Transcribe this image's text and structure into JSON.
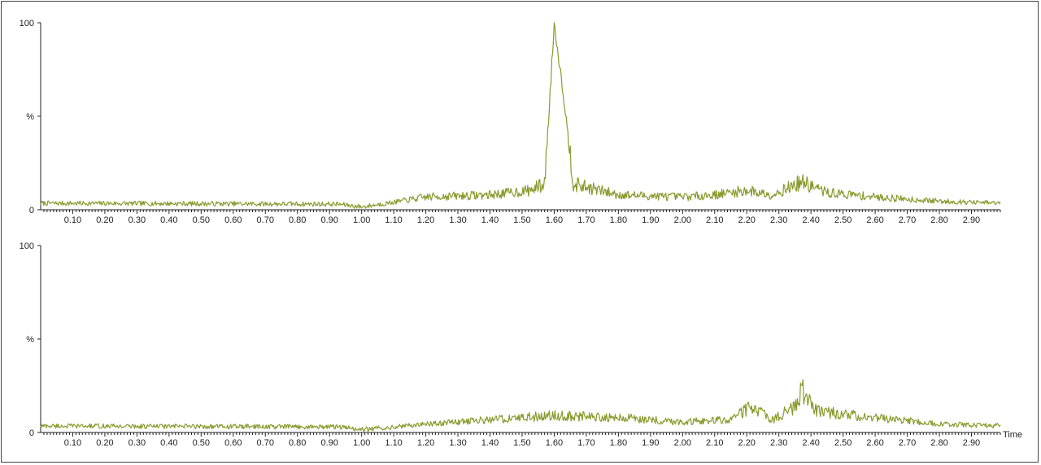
{
  "chart_data": [
    {
      "type": "line",
      "name": "top-trace",
      "ylabel": "%",
      "xlabel": "",
      "ylim": [
        0,
        100
      ],
      "xlim": [
        0.0,
        2.99
      ],
      "y_ticks": [
        "0",
        "%",
        "100"
      ],
      "x_ticks": [
        "0.10",
        "0.20",
        "0.30",
        "0.40",
        "0.50",
        "0.60",
        "0.70",
        "0.80",
        "0.90",
        "1.00",
        "1.10",
        "1.20",
        "1.30",
        "1.40",
        "1.50",
        "1.60",
        "1.70",
        "1.80",
        "1.90",
        "2.00",
        "2.10",
        "2.20",
        "2.30",
        "2.40",
        "2.50",
        "2.60",
        "2.70",
        "2.80",
        "2.90"
      ],
      "color": "#8a9a2e",
      "baseline_profile": {
        "x": [
          0.0,
          0.93,
          1.0,
          1.2,
          1.4,
          1.52,
          1.57,
          1.6,
          1.63,
          1.66,
          1.8,
          2.0,
          2.1,
          2.2,
          2.28,
          2.37,
          2.45,
          2.6,
          2.8,
          2.99
        ],
        "y": [
          3,
          2.5,
          1,
          6,
          7,
          9,
          12,
          100,
          60,
          12,
          7,
          6,
          7,
          9,
          7,
          13,
          8,
          6,
          4,
          3
        ]
      }
    },
    {
      "type": "line",
      "name": "bottom-trace",
      "ylabel": "%",
      "xlabel": "Time",
      "ylim": [
        0,
        100
      ],
      "xlim": [
        0.0,
        2.99
      ],
      "y_ticks": [
        "0",
        "%",
        "100"
      ],
      "x_ticks": [
        "0.10",
        "0.20",
        "0.30",
        "0.40",
        "0.50",
        "0.60",
        "0.70",
        "0.80",
        "0.90",
        "1.00",
        "1.10",
        "1.20",
        "1.30",
        "1.40",
        "1.50",
        "1.60",
        "1.70",
        "1.80",
        "1.90",
        "2.00",
        "2.10",
        "2.20",
        "2.30",
        "2.40",
        "2.50",
        "2.60",
        "2.70",
        "2.80",
        "2.90"
      ],
      "color": "#8a9a2e",
      "baseline_profile": {
        "x": [
          0.0,
          0.93,
          1.0,
          1.2,
          1.4,
          1.6,
          1.8,
          2.0,
          2.15,
          2.21,
          2.28,
          2.35,
          2.37,
          2.42,
          2.6,
          2.8,
          2.99
        ],
        "y": [
          3,
          2.5,
          1,
          4,
          6,
          8,
          7,
          5,
          6,
          12,
          6,
          12,
          20,
          10,
          7,
          4,
          3
        ]
      }
    }
  ]
}
